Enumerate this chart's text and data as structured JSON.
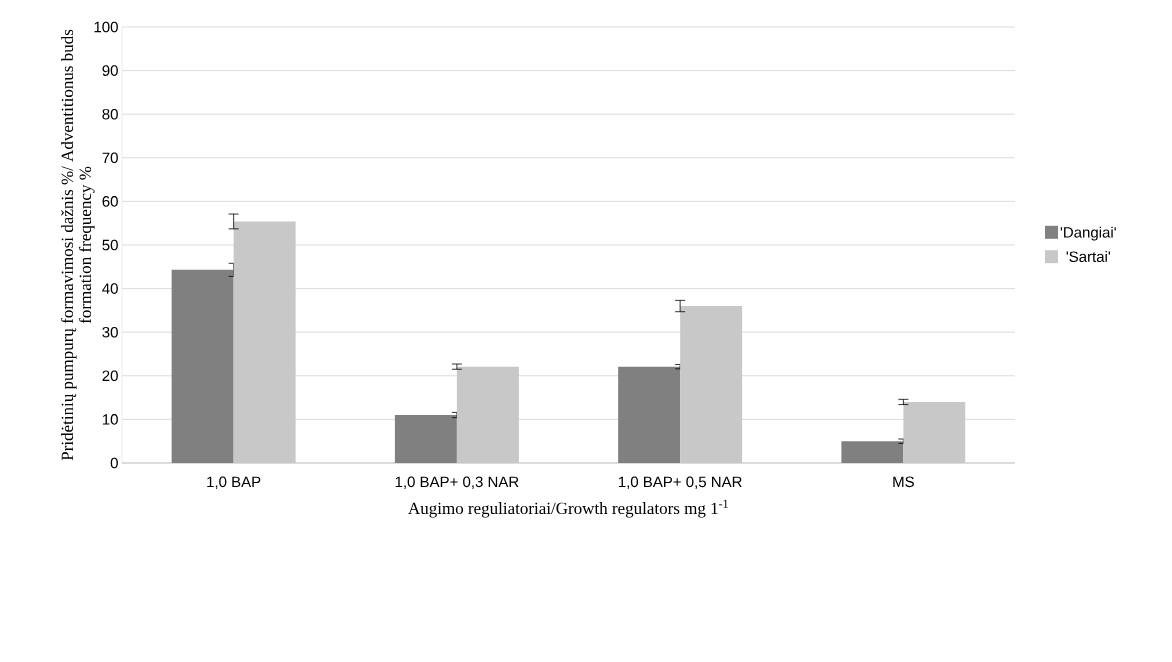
{
  "chart_data": {
    "type": "bar",
    "xlabel": "Augimo reguliatoriai/Growth regulators mg 1$^{-1}$",
    "ylabel": "Pridėtinių pumpurų formavimosi dažnis %/ Adventitionus buds formation frequency  %",
    "categories": [
      "1,0 BAP",
      "1,0 BAP+ 0,3 NAR",
      "1,0 BAP+  0,5 NAR",
      "MS"
    ],
    "series": [
      {
        "name": "'Dangiai'",
        "color": "#808080",
        "values": [
          44.3,
          11.0,
          22.1,
          5.0
        ],
        "errors": [
          1.5,
          0.6,
          0.5,
          0.5
        ]
      },
      {
        "name": "'Sartai'",
        "color": "#c8c8c8",
        "values": [
          55.4,
          22.1,
          36.0,
          14.0
        ],
        "errors": [
          1.7,
          0.6,
          1.3,
          0.6
        ]
      }
    ],
    "ylim": [
      0,
      100
    ],
    "yticks": [
      0,
      10,
      20,
      30,
      40,
      50,
      60,
      70,
      80,
      90,
      100
    ],
    "grid": "y",
    "legend": "right"
  }
}
